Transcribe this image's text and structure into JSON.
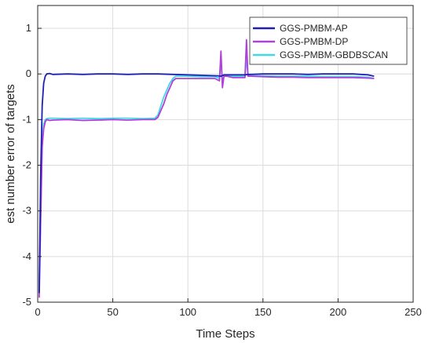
{
  "chart_data": {
    "type": "line",
    "xlabel": "Time Steps",
    "ylabel": "est number error of targets",
    "xlim": [
      0,
      250
    ],
    "ylim": [
      -5,
      1.5
    ],
    "xticks": [
      0,
      50,
      100,
      150,
      200,
      250
    ],
    "yticks": [
      -5,
      -4,
      -3,
      -2,
      -1,
      0,
      1
    ],
    "xtick_labels": [
      "0",
      "50",
      "100",
      "150",
      "200",
      "250"
    ],
    "ytick_labels": [
      "-5",
      "-4",
      "-3",
      "-2",
      "-1",
      "0",
      "1"
    ],
    "grid": true,
    "legend_position": "top-right",
    "series": [
      {
        "name": "GGS-PMBM-AP",
        "color": "#1f1fb4",
        "x": [
          1,
          2,
          3,
          4,
          5,
          6,
          8,
          10,
          20,
          30,
          40,
          50,
          60,
          70,
          80,
          90,
          100,
          110,
          120,
          122,
          124,
          126,
          130,
          138,
          140,
          142,
          150,
          160,
          170,
          180,
          190,
          200,
          210,
          220,
          224
        ],
        "y": [
          -4.8,
          -2.2,
          -0.7,
          -0.2,
          -0.05,
          0.0,
          0.01,
          -0.01,
          0.0,
          -0.01,
          0.0,
          0.0,
          -0.01,
          0.0,
          0.0,
          -0.01,
          -0.02,
          -0.03,
          -0.04,
          -0.05,
          -0.02,
          -0.02,
          -0.02,
          -0.02,
          -0.01,
          -0.01,
          0.0,
          0.0,
          0.0,
          -0.01,
          0.0,
          0.0,
          0.0,
          -0.02,
          -0.05
        ]
      },
      {
        "name": "GGS-PMBM-DP",
        "color": "#b040d8",
        "x": [
          1,
          2,
          3,
          4,
          5,
          6,
          8,
          10,
          20,
          30,
          40,
          50,
          60,
          70,
          78,
          80,
          82,
          84,
          86,
          88,
          90,
          92,
          95,
          100,
          110,
          118,
          121,
          122,
          123,
          124,
          126,
          130,
          136,
          138,
          139,
          140,
          142,
          150,
          160,
          170,
          180,
          190,
          200,
          210,
          220,
          224
        ],
        "y": [
          -4.9,
          -3.2,
          -1.6,
          -1.2,
          -1.05,
          -1.0,
          -1.02,
          -1.01,
          -1.0,
          -1.02,
          -1.01,
          -1.0,
          -1.01,
          -1.0,
          -1.0,
          -0.95,
          -0.8,
          -0.65,
          -0.45,
          -0.3,
          -0.15,
          -0.1,
          -0.1,
          -0.1,
          -0.1,
          -0.1,
          -0.15,
          0.5,
          -0.3,
          -0.05,
          -0.05,
          -0.08,
          -0.08,
          -0.08,
          0.75,
          -0.05,
          -0.05,
          -0.06,
          -0.07,
          -0.07,
          -0.08,
          -0.08,
          -0.08,
          -0.08,
          -0.09,
          -0.1
        ]
      },
      {
        "name": "GGS-PMBM-GBDBSCAN",
        "color": "#40d8e8",
        "x": [
          1,
          2,
          3,
          4,
          5,
          6,
          8,
          10,
          20,
          30,
          40,
          50,
          60,
          70,
          78,
          80,
          82,
          84,
          86,
          88,
          90,
          92,
          95,
          100,
          110,
          118,
          121,
          122,
          123,
          124,
          126,
          130,
          136,
          138,
          139,
          140,
          142,
          150,
          160,
          170,
          180,
          190,
          200,
          210,
          220,
          224
        ],
        "y": [
          -4.6,
          -3.0,
          -1.5,
          -1.1,
          -1.0,
          -0.98,
          -0.97,
          -0.97,
          -0.98,
          -0.97,
          -0.98,
          -0.97,
          -0.97,
          -0.98,
          -0.97,
          -0.9,
          -0.7,
          -0.5,
          -0.35,
          -0.2,
          -0.1,
          -0.05,
          -0.05,
          -0.05,
          -0.06,
          -0.06,
          -0.1,
          0.3,
          -0.2,
          -0.03,
          -0.03,
          -0.05,
          -0.05,
          -0.05,
          0.35,
          -0.03,
          -0.04,
          -0.04,
          -0.05,
          -0.05,
          -0.05,
          -0.06,
          -0.06,
          -0.06,
          -0.07,
          -0.1
        ]
      }
    ]
  }
}
